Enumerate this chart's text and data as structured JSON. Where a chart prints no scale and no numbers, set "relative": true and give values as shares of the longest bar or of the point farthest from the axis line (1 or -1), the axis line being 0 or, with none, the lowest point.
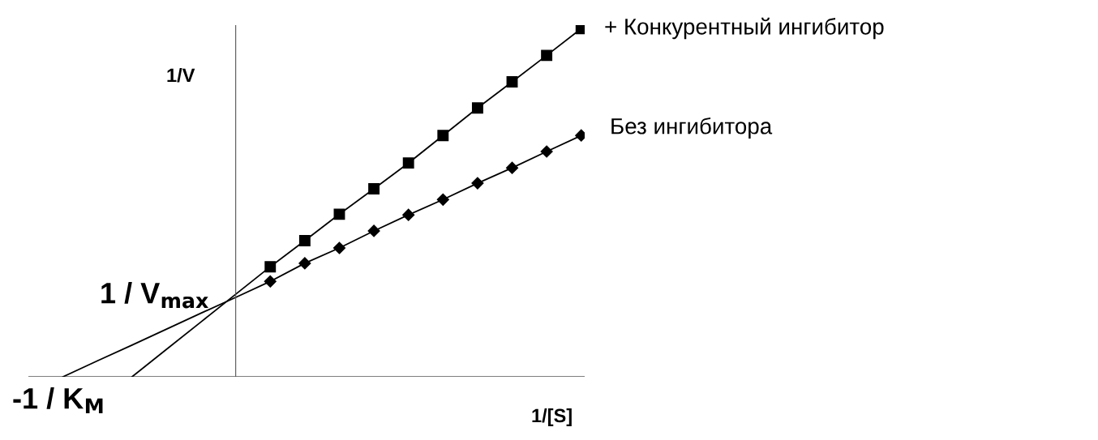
{
  "chart_data": {
    "type": "line",
    "relative": true,
    "annotations": [
      "1/V",
      "1/[S]",
      "1 / V$_{max}$",
      "-1 / K$_{M}$"
    ],
    "categories": [
      null,
      null,
      null,
      null,
      null,
      null,
      null,
      null,
      null,
      null,
      null,
      null,
      null,
      null,
      null,
      null
    ],
    "series": [
      {
        "name": "+ Конкурентный ингибитор",
        "marker": "square",
        "color": "#000000",
        "values": [
          null,
          null,
          null,
          null,
          null,
          null,
          0.316,
          0.391,
          0.467,
          0.54,
          0.614,
          0.693,
          0.772,
          0.847,
          0.923,
          1.0
        ]
      },
      {
        "name": "Без ингибитора",
        "marker": "diamond",
        "color": "#000000",
        "values": [
          null,
          null,
          null,
          null,
          null,
          null,
          0.274,
          0.326,
          0.37,
          0.419,
          0.465,
          0.509,
          0.556,
          0.6,
          0.647,
          0.693
        ]
      },
      {
        "marker": "none",
        "color": "#000000",
        "values": [
          null,
          null,
          0.0,
          0.079,
          0.158,
          0.237,
          0.316,
          null,
          null,
          null,
          null,
          null,
          null,
          null,
          null,
          null
        ]
      },
      {
        "marker": "none",
        "color": "#000000",
        "values": [
          0.0,
          0.046,
          0.091,
          0.137,
          0.183,
          0.228,
          0.274,
          null,
          null,
          null,
          null,
          null,
          null,
          null,
          null,
          null
        ]
      }
    ]
  }
}
